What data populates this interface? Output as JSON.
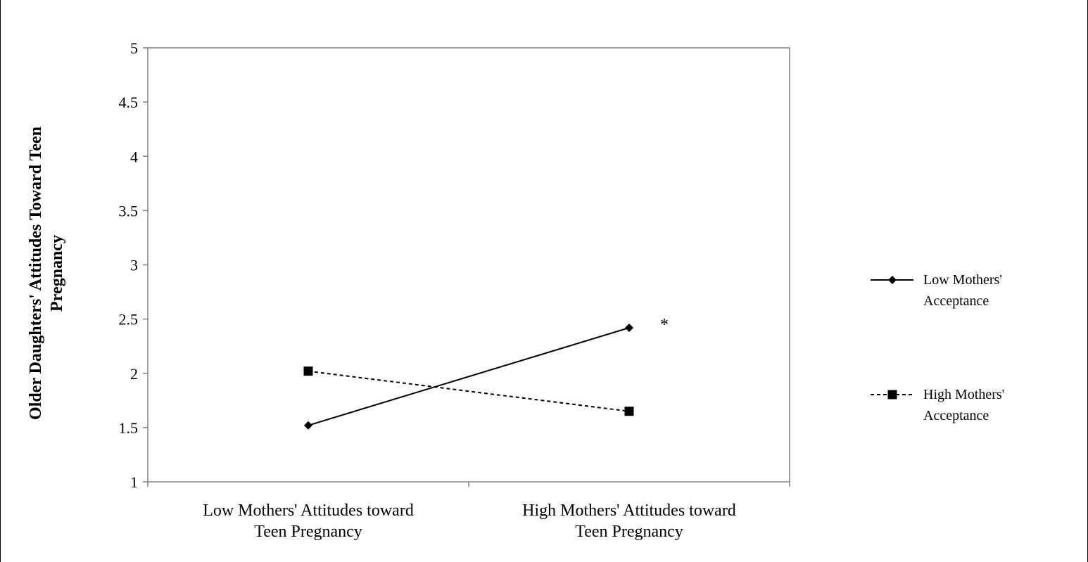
{
  "chart_data": {
    "type": "line",
    "categories": [
      [
        "Low Mothers' Attitudes toward",
        "Teen Pregnancy"
      ],
      [
        "High Mothers' Attitudes toward",
        "Teen Pregnancy"
      ]
    ],
    "ylabel": [
      "Older Daughters' Attitudes Toward Teen",
      "Pregnancy"
    ],
    "ylim": [
      1,
      5
    ],
    "yticks": [
      "1",
      "1.5",
      "2",
      "2.5",
      "3",
      "3.5",
      "4",
      "4.5",
      "5"
    ],
    "grid": false,
    "legend_position": "right",
    "series": [
      {
        "name": [
          "Low Mothers'",
          "Acceptance"
        ],
        "values": [
          1.52,
          2.42
        ],
        "marker": "diamond",
        "line_style": "solid",
        "color": "#000000"
      },
      {
        "name": [
          "High Mothers'",
          "Acceptance"
        ],
        "values": [
          2.02,
          1.65
        ],
        "marker": "square",
        "line_style": "dashed",
        "color": "#000000"
      }
    ],
    "annotations": [
      {
        "text": "*",
        "series": 0,
        "category": 1
      }
    ]
  }
}
